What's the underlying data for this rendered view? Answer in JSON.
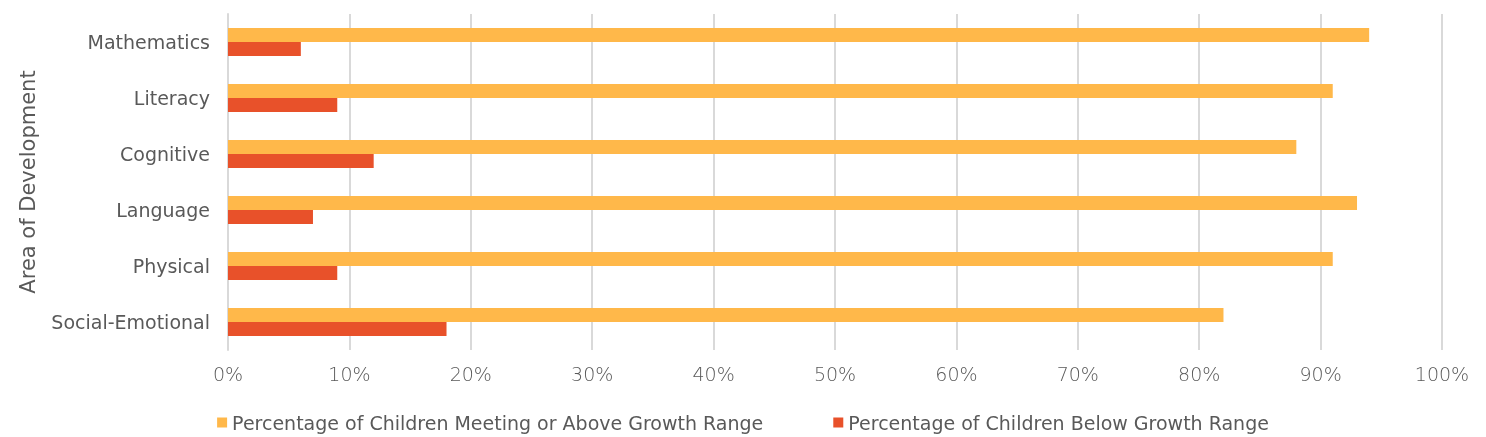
{
  "chart_data": {
    "type": "bar",
    "orientation": "horizontal",
    "ylabel": "Area of Development",
    "categories": [
      "Mathematics",
      "Literacy",
      "Cognitive",
      "Language",
      "Physical",
      "Social-Emotional"
    ],
    "series": [
      {
        "name": "Percentage of Children Meeting or Above Growth Range",
        "color": "#ffb84a",
        "values": [
          94,
          91,
          88,
          93,
          91,
          82
        ]
      },
      {
        "name": "Percentage of Children Below Growth Range",
        "color": "#e8512a",
        "values": [
          6,
          9,
          12,
          7,
          9,
          18
        ]
      }
    ],
    "xlim": [
      0,
      100
    ],
    "xticks": [
      {
        "value": 0,
        "label": "0%"
      },
      {
        "value": 10,
        "label": "10%"
      },
      {
        "value": 20,
        "label": "20%"
      },
      {
        "value": 30,
        "label": "30%"
      },
      {
        "value": 40,
        "label": "40%"
      },
      {
        "value": 50,
        "label": "50%"
      },
      {
        "value": 60,
        "label": "60%"
      },
      {
        "value": 70,
        "label": "70%"
      },
      {
        "value": 80,
        "label": "80%"
      },
      {
        "value": 90,
        "label": "90%"
      },
      {
        "value": 100,
        "label": "100%"
      }
    ],
    "grid": "x",
    "legend": "bottom"
  }
}
